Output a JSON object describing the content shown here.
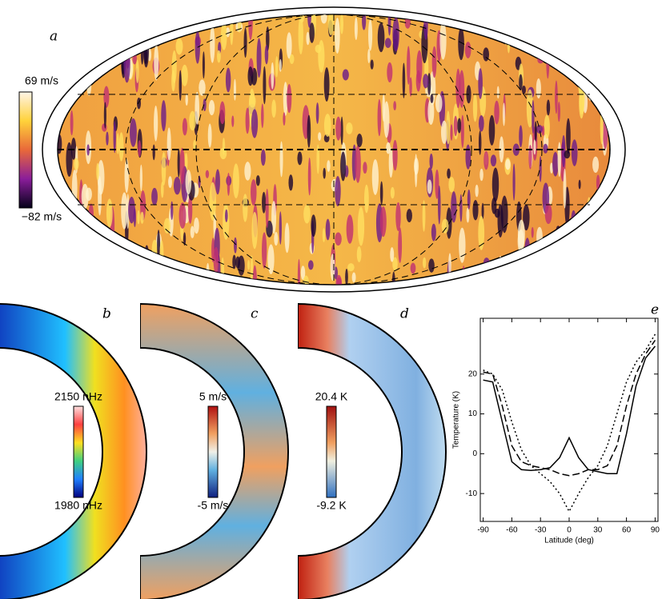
{
  "chart_data": [
    {
      "type": "map",
      "label": "a",
      "colorbar": {
        "lim": [
          -82,
          69
        ],
        "ticks": [
          {
            "value": 69,
            "label": "69 m/s"
          },
          {
            "value": -82,
            "label": "−82 m/s"
          }
        ]
      }
    },
    {
      "type": "slice",
      "label": "b",
      "colorbar": {
        "lim": [
          1980,
          2150
        ],
        "ticks": [
          {
            "value": 2150,
            "label": "2150  nHz"
          },
          {
            "value": 1980,
            "label": "1980  nHz"
          }
        ]
      }
    },
    {
      "type": "slice",
      "label": "c",
      "colorbar": {
        "lim": [
          -5,
          5
        ],
        "ticks": [
          {
            "value": 5,
            "label": "5 m/s"
          },
          {
            "value": -5,
            "label": "-5 m/s"
          }
        ]
      }
    },
    {
      "type": "slice",
      "label": "d",
      "colorbar": {
        "lim": [
          -9.2,
          20.4
        ],
        "ticks": [
          {
            "value": 20.4,
            "label": "20.4 K"
          },
          {
            "value": -9.2,
            "label": "-9.2 K"
          }
        ]
      }
    },
    {
      "type": "line",
      "label": "e",
      "x_label": "Latitude (deg)",
      "y_label": "Temperature (K)",
      "x": [
        -90,
        -80,
        -70,
        -60,
        -50,
        -40,
        -30,
        -20,
        -10,
        0,
        10,
        20,
        30,
        40,
        50,
        60,
        70,
        80,
        90
      ],
      "series": [
        {
          "color": "#000000",
          "dash": "solid",
          "values": [
            18.5,
            18,
            8,
            -2,
            -4,
            -4.2,
            -4,
            -3.5,
            -1,
            4,
            -1,
            -4,
            -4.5,
            -5,
            -5,
            5,
            17,
            24,
            27
          ]
        },
        {
          "color": "#000000",
          "dash": "dashed",
          "values": [
            20.5,
            20,
            12,
            2,
            -2,
            -3,
            -3.5,
            -4,
            -5,
            -5.5,
            -5,
            -4,
            -4,
            -3,
            2,
            12,
            20,
            25,
            28.5
          ]
        },
        {
          "color": "#000000",
          "dash": "dotted",
          "values": [
            21,
            20,
            16,
            8,
            1,
            -3,
            -5,
            -7,
            -10,
            -14.5,
            -10,
            -6,
            -3,
            2,
            10,
            18,
            23,
            26,
            30
          ]
        }
      ],
      "xlim": [
        -93,
        93
      ],
      "ylim": [
        -17,
        34
      ],
      "xticks": [
        -90,
        -60,
        -30,
        0,
        30,
        60,
        90
      ],
      "yticks": [
        -10,
        0,
        10,
        20
      ]
    }
  ]
}
